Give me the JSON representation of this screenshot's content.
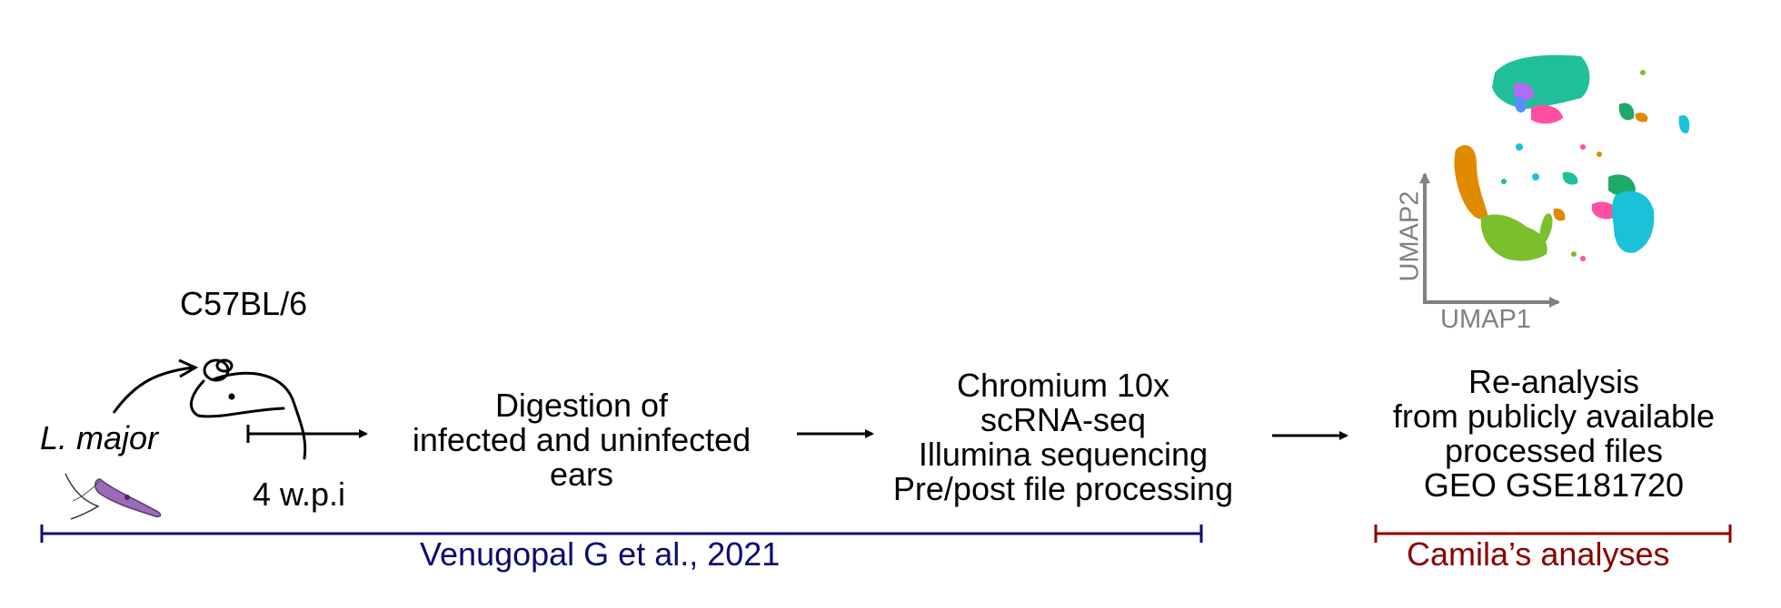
{
  "colors": {
    "publication": "#0b0b73",
    "analyses": "#8b0000",
    "axis": "#808080",
    "parasite": "#9b6bb8",
    "cluster_teal": "#1fbf9a",
    "cluster_orange": "#e08a00",
    "cluster_green": "#7ac02c",
    "cluster_pink": "#ff4fa0",
    "cluster_cyan": "#19c2d6",
    "cluster_violet": "#b26cf0",
    "cluster_blue": "#5b8cff"
  },
  "icons": [
    "parasite-icon",
    "mouse-icon",
    "umap-plot"
  ],
  "labels": {
    "strain": "C57BL/6",
    "pathogen": "L. major",
    "timepoint": "4 w.p.i",
    "digestion": [
      "Digestion of",
      "infected and uninfected",
      "ears"
    ],
    "sequencing": [
      "Chromium 10x",
      "scRNA-seq",
      "Illumina sequencing",
      "Pre/post file processing"
    ],
    "reanalysis": [
      "Re-analysis",
      "from publicly available",
      "processed files",
      "GEO GSE181720"
    ],
    "umap_x": "UMAP1",
    "umap_y": "UMAP2",
    "publication": "Venugopal G et al., 2021",
    "analyses": "Camila’s analyses"
  }
}
